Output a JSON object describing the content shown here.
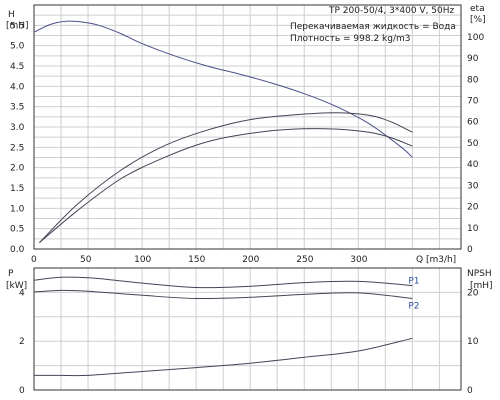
{
  "chart_data": [
    {
      "type": "line",
      "title": "TP 200-50/4, 3*400 V, 50Hz",
      "annotations": [
        "Перекачиваемая жидкость = Вода",
        "Плотность = 998.2 kg/m3"
      ],
      "xlabel": "Q [m3/h]",
      "xlim": [
        0,
        395
      ],
      "x_ticks": [
        0,
        50,
        100,
        150,
        200,
        250,
        300
      ],
      "ylabel_left": [
        "H",
        "[mH]"
      ],
      "ylim_left": [
        0,
        6
      ],
      "y_ticks_left": [
        0.0,
        0.5,
        1.0,
        1.5,
        2.0,
        2.5,
        3.0,
        3.5,
        4.0,
        4.5,
        5.0,
        5.5
      ],
      "ylabel_right": [
        "eta",
        "[%]"
      ],
      "ylim_right": [
        0,
        115
      ],
      "y_ticks_right": [
        0,
        10,
        20,
        30,
        40,
        50,
        60,
        70,
        80,
        90,
        100
      ],
      "grid": true,
      "series": [
        {
          "axis": "left",
          "x": [
            0,
            15,
            30,
            45,
            60,
            80,
            100,
            130,
            160,
            190,
            220,
            250,
            280,
            310,
            340,
            350
          ],
          "values": [
            5.33,
            5.52,
            5.6,
            5.58,
            5.5,
            5.3,
            5.05,
            4.75,
            4.5,
            4.3,
            4.08,
            3.82,
            3.5,
            3.08,
            2.5,
            2.25
          ]
        },
        {
          "axis": "right",
          "x": [
            5,
            40,
            80,
            120,
            160,
            200,
            240,
            280,
            310,
            330,
            350
          ],
          "values": [
            3,
            21,
            37,
            48.5,
            56,
            61,
            63.2,
            64.2,
            63,
            60,
            55
          ]
        },
        {
          "axis": "right",
          "x": [
            5,
            40,
            80,
            120,
            160,
            200,
            240,
            280,
            310,
            330,
            350
          ],
          "values": [
            3,
            18,
            33,
            43,
            50.5,
            54.5,
            56.5,
            56.5,
            55,
            52.5,
            48.5
          ]
        }
      ]
    },
    {
      "type": "line",
      "xlim": [
        0,
        395
      ],
      "ylabel_left": [
        "P",
        "[kW]"
      ],
      "ylim_left": [
        0,
        5
      ],
      "y_ticks_left": [
        0,
        2,
        4
      ],
      "ylabel_right": [
        "NPSH",
        "[mH]"
      ],
      "ylim_right": [
        0,
        25
      ],
      "y_ticks_right": [
        0,
        10,
        20
      ],
      "grid": true,
      "series": [
        {
          "name": "P1",
          "axis": "left",
          "x": [
            0,
            25,
            50,
            75,
            100,
            150,
            200,
            250,
            300,
            350
          ],
          "values": [
            4.5,
            4.62,
            4.6,
            4.5,
            4.38,
            4.2,
            4.25,
            4.4,
            4.45,
            4.28
          ]
        },
        {
          "name": "P2",
          "axis": "left",
          "x": [
            0,
            25,
            50,
            100,
            150,
            200,
            250,
            300,
            350
          ],
          "values": [
            4.02,
            4.08,
            4.05,
            3.88,
            3.75,
            3.8,
            3.92,
            3.98,
            3.75
          ]
        },
        {
          "axis": "right",
          "x": [
            0,
            25,
            50,
            100,
            150,
            200,
            250,
            300,
            350
          ],
          "values": [
            3,
            3,
            3,
            3.8,
            4.6,
            5.5,
            6.7,
            8.0,
            10.6
          ]
        }
      ]
    }
  ]
}
